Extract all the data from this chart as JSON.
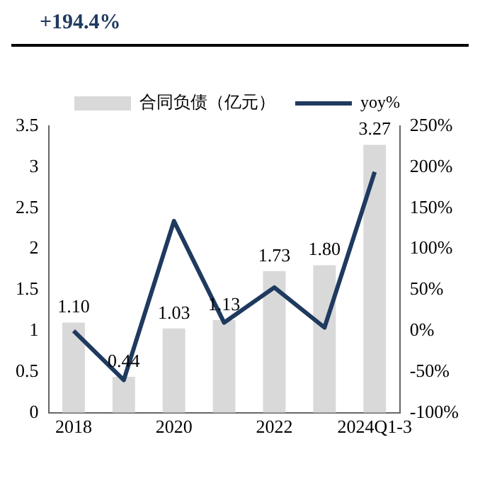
{
  "chart_data": {
    "type": "bar",
    "title": "+194.4%",
    "categories": [
      "2018",
      null,
      "2020",
      null,
      "2022",
      null,
      "2024Q1-3"
    ],
    "series": [
      {
        "name": "合同负债（亿元）",
        "color": "#d9d9d9",
        "values": [
          1.1,
          0.44,
          1.03,
          1.13,
          1.73,
          1.8,
          3.27
        ],
        "value_labels": [
          "1.10",
          "0.44",
          "1.03",
          "1.13",
          "1.73",
          "1.80",
          "3.27"
        ]
      },
      {
        "name": "yoy%",
        "type": "line",
        "axis": "y2",
        "color": "#1f3a5f",
        "values": [
          0,
          -60,
          134,
          10,
          53,
          4,
          194
        ]
      }
    ],
    "ylim": [
      0,
      3.5
    ],
    "yticks": [
      0,
      0.5,
      1,
      1.5,
      2,
      2.5,
      3,
      3.5
    ],
    "y2lim": [
      -100,
      250
    ],
    "y2ticks": [
      {
        "value": -100,
        "label": "-100%"
      },
      {
        "value": -50,
        "label": "-50%"
      },
      {
        "value": 0,
        "label": "0%"
      },
      {
        "value": 50,
        "label": "50%"
      },
      {
        "value": 100,
        "label": "100%"
      },
      {
        "value": 150,
        "label": "150%"
      },
      {
        "value": 200,
        "label": "200%"
      },
      {
        "value": 250,
        "label": "250%"
      }
    ],
    "legend": "top",
    "grid": false,
    "marker": "none",
    "line_style": "solid"
  }
}
